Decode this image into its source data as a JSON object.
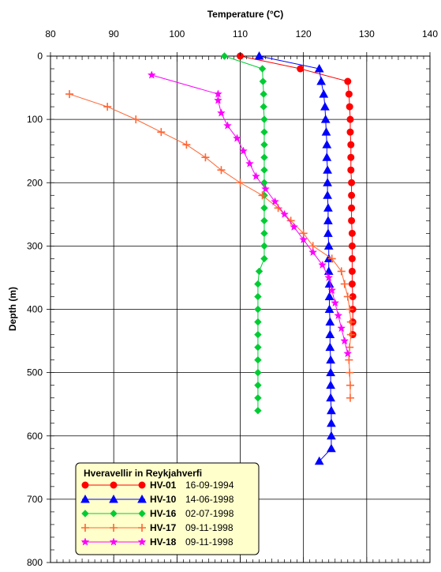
{
  "chart_data": {
    "type": "line",
    "title": "",
    "xlabel": "Temperature (°C)",
    "ylabel": "Depth (m)",
    "x_axis_position": "top",
    "y_inverted": true,
    "xlim": [
      80,
      140
    ],
    "ylim": [
      0,
      800
    ],
    "x_ticks": [
      80,
      90,
      100,
      110,
      120,
      130,
      140
    ],
    "y_ticks": [
      0,
      100,
      200,
      300,
      400,
      500,
      600,
      700,
      800
    ],
    "grid": true,
    "legend": {
      "title": "Hveravellir in Reykjahverfi",
      "placement": "bottom-left",
      "background": "#ffffcc"
    },
    "series": [
      {
        "name": "HV-01",
        "date": "16-09-1994",
        "color": "#ff0000",
        "marker": "circle",
        "points": [
          [
            110,
            0
          ],
          [
            119.5,
            20
          ],
          [
            127,
            40
          ],
          [
            127.2,
            60
          ],
          [
            127.3,
            80
          ],
          [
            127.4,
            100
          ],
          [
            127.4,
            120
          ],
          [
            127.5,
            140
          ],
          [
            127.5,
            160
          ],
          [
            127.5,
            180
          ],
          [
            127.6,
            200
          ],
          [
            127.6,
            220
          ],
          [
            127.6,
            240
          ],
          [
            127.6,
            260
          ],
          [
            127.7,
            280
          ],
          [
            127.7,
            300
          ],
          [
            127.7,
            320
          ],
          [
            127.7,
            340
          ],
          [
            127.7,
            360
          ],
          [
            127.8,
            380
          ],
          [
            127.8,
            400
          ],
          [
            127.8,
            420
          ],
          [
            127.8,
            440
          ]
        ]
      },
      {
        "name": "HV-10",
        "date": "14-06-1998",
        "color": "#0000ff",
        "marker": "triangle",
        "points": [
          [
            113,
            0
          ],
          [
            122.5,
            20
          ],
          [
            122.8,
            40
          ],
          [
            123.2,
            60
          ],
          [
            123.4,
            80
          ],
          [
            123.5,
            100
          ],
          [
            123.6,
            120
          ],
          [
            123.7,
            140
          ],
          [
            123.7,
            160
          ],
          [
            123.8,
            180
          ],
          [
            123.8,
            200
          ],
          [
            123.8,
            220
          ],
          [
            123.9,
            240
          ],
          [
            123.9,
            260
          ],
          [
            123.9,
            280
          ],
          [
            124,
            300
          ],
          [
            124,
            320
          ],
          [
            124,
            340
          ],
          [
            124.1,
            360
          ],
          [
            124.1,
            380
          ],
          [
            124.1,
            400
          ],
          [
            124.2,
            420
          ],
          [
            124.2,
            440
          ],
          [
            124.2,
            460
          ],
          [
            124.3,
            480
          ],
          [
            124.3,
            500
          ],
          [
            124.3,
            520
          ],
          [
            124.3,
            540
          ],
          [
            124.4,
            560
          ],
          [
            124.4,
            580
          ],
          [
            124.4,
            600
          ],
          [
            124.4,
            620
          ],
          [
            122.5,
            640
          ]
        ]
      },
      {
        "name": "HV-16",
        "date": "02-07-1998",
        "color": "#00cc33",
        "marker": "diamond",
        "points": [
          [
            107.5,
            0
          ],
          [
            113.5,
            20
          ],
          [
            113.6,
            40
          ],
          [
            113.7,
            60
          ],
          [
            113.7,
            80
          ],
          [
            113.8,
            100
          ],
          [
            113.8,
            120
          ],
          [
            113.8,
            140
          ],
          [
            113.8,
            160
          ],
          [
            113.8,
            180
          ],
          [
            113.8,
            200
          ],
          [
            113.8,
            220
          ],
          [
            113.8,
            240
          ],
          [
            113.8,
            260
          ],
          [
            113.8,
            280
          ],
          [
            113.8,
            300
          ],
          [
            113.8,
            320
          ],
          [
            113,
            340
          ],
          [
            112.8,
            360
          ],
          [
            112.8,
            380
          ],
          [
            112.8,
            400
          ],
          [
            112.8,
            420
          ],
          [
            112.8,
            440
          ],
          [
            112.8,
            460
          ],
          [
            112.8,
            480
          ],
          [
            112.8,
            500
          ],
          [
            112.8,
            520
          ],
          [
            112.8,
            540
          ],
          [
            112.8,
            560
          ]
        ]
      },
      {
        "name": "HV-17",
        "date": "09-11-1998",
        "color": "#ff6633",
        "marker": "plus",
        "points": [
          [
            83,
            60
          ],
          [
            89,
            80
          ],
          [
            93.5,
            100
          ],
          [
            97.5,
            120
          ],
          [
            101.5,
            140
          ],
          [
            104.5,
            160
          ],
          [
            107,
            180
          ],
          [
            110,
            200
          ],
          [
            113.5,
            220
          ],
          [
            116,
            240
          ],
          [
            118,
            260
          ],
          [
            120,
            280
          ],
          [
            121.5,
            300
          ],
          [
            124.5,
            320
          ],
          [
            126,
            340
          ],
          [
            126.5,
            360
          ],
          [
            127,
            380
          ],
          [
            127.3,
            400
          ],
          [
            127.5,
            420
          ],
          [
            127.5,
            440
          ],
          [
            127.3,
            460
          ],
          [
            127.2,
            480
          ],
          [
            127.3,
            500
          ],
          [
            127.4,
            520
          ],
          [
            127.4,
            540
          ]
        ]
      },
      {
        "name": "HV-18",
        "date": "09-11-1998",
        "color": "#ff00ff",
        "marker": "star",
        "points": [
          [
            96,
            30
          ],
          [
            106.5,
            60
          ],
          [
            106.5,
            70
          ],
          [
            107,
            90
          ],
          [
            108,
            110
          ],
          [
            109.5,
            130
          ],
          [
            110.5,
            150
          ],
          [
            111.5,
            170
          ],
          [
            112.5,
            190
          ],
          [
            114,
            210
          ],
          [
            115.5,
            230
          ],
          [
            117,
            250
          ],
          [
            118.5,
            270
          ],
          [
            120,
            290
          ],
          [
            121.5,
            310
          ],
          [
            123,
            330
          ],
          [
            124,
            350
          ],
          [
            124.5,
            370
          ],
          [
            125,
            390
          ],
          [
            125.5,
            410
          ],
          [
            126,
            430
          ],
          [
            126.5,
            450
          ],
          [
            127,
            470
          ]
        ]
      }
    ]
  }
}
